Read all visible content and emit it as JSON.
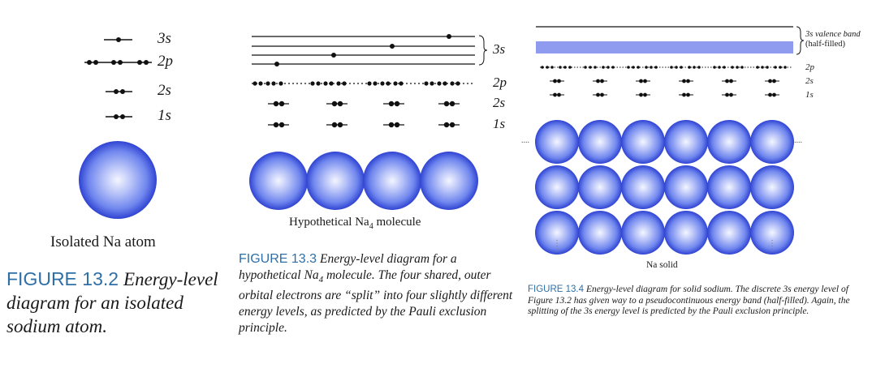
{
  "colors": {
    "figure_label": "#2f6fa8",
    "atom_core": "#f4f6ff",
    "atom_mid": "#6f86ee",
    "atom_edge": "#2f43d2",
    "band": "#8f9bee"
  },
  "fig2": {
    "levels": [
      "3s",
      "2p",
      "2s",
      "1s"
    ],
    "object_label": "Isolated Na atom",
    "caption_number": "FIGURE 13.2",
    "caption_text": "Energy-level diagram for an isolated sodium atom."
  },
  "fig3": {
    "level_3s": "3s",
    "level_2p": "2p",
    "level_2s": "2s",
    "level_1s": "1s",
    "molecule_label_prefix": "Hypothetical Na",
    "molecule_label_subscript": "4",
    "molecule_label_suffix": " molecule",
    "caption_number": "FIGURE 13.3",
    "caption_text_1": "Energy-level diagram for a hypothetical Na",
    "caption_sub": "4",
    "caption_text_2": " molecule. The four shared, outer orbital electrons are “split” into four slightly different energy levels, as predicted by the Pauli exclusion principle."
  },
  "fig4": {
    "band_label_1": "3s valence band",
    "band_label_2": "(half-filled)",
    "level_2p": "2p",
    "level_2s": "2s",
    "level_1s": "1s",
    "solid_label": "Na solid",
    "caption_number": "FIGURE 13.4",
    "caption_text": "Energy-level diagram for solid sodium. The discrete 3s energy level of Figure 13.2 has given way to a pseudocontinuous energy band (half-filled). Again, the splitting of the 3s energy level is predicted by the Pauli exclusion principle."
  }
}
